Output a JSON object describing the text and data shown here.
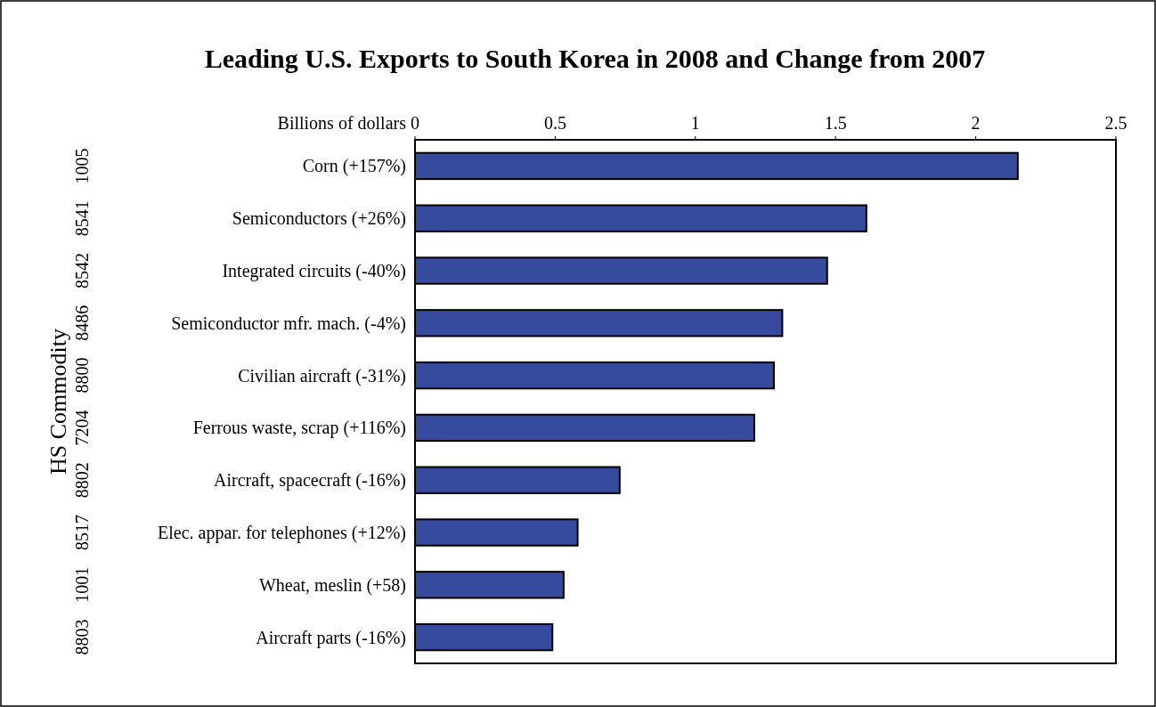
{
  "chart_data": {
    "type": "bar",
    "orientation": "horizontal",
    "title": "Leading U.S. Exports to South Korea in 2008 and Change from 2007",
    "xlabel": "Billions of dollars",
    "ylabel": "HS Commodity",
    "categories": [
      "Corn (+157%)",
      "Semiconductors (+26%)",
      "Integrated circuits (-40%)",
      "Semiconductor mfr. mach. (-4%)",
      "Civilian aircraft (-31%)",
      "Ferrous waste, scrap (+116%)",
      "Aircraft, spacecraft (-16%)",
      "Elec. appar. for telephones (+12%)",
      "Wheat, meslin (+58)",
      "Aircraft parts (-16%)"
    ],
    "y2_categories": [
      "1005",
      "8541",
      "8542",
      "8486",
      "8800",
      "7204",
      "8802",
      "8517",
      "1001",
      "8803"
    ],
    "values": [
      2.15,
      1.61,
      1.47,
      1.31,
      1.28,
      1.21,
      0.73,
      0.58,
      0.53,
      0.49
    ],
    "color": "#364a9e",
    "xlim": [
      0,
      2.5
    ],
    "xticks": [
      0,
      0.5,
      1,
      1.5,
      2,
      2.5
    ],
    "grid": false
  }
}
